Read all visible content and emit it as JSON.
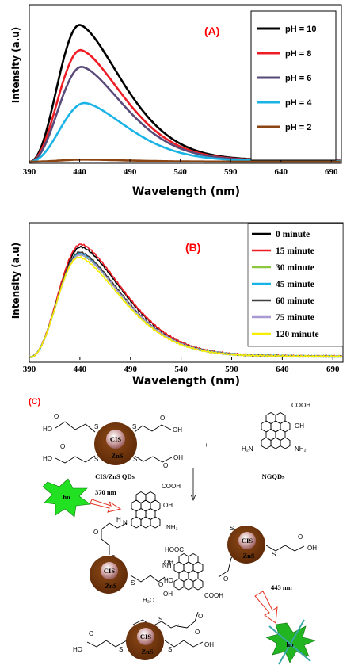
{
  "chart_data": [
    {
      "type": "line",
      "panel_label": "(A)",
      "xlabel": "Wavelength (nm)",
      "ylabel": "Intensity (a.u)",
      "xlim": [
        390,
        700
      ],
      "ylim": [
        0,
        1.0
      ],
      "x_ticks": [
        390,
        440,
        490,
        540,
        590,
        640,
        690
      ],
      "grid": false,
      "legend_position": "top-right",
      "series": [
        {
          "name": "pH = 10",
          "color": "#000000",
          "peak_x": 440,
          "peak_y": 0.98
        },
        {
          "name": "pH = 8",
          "color": "#ee1c24",
          "peak_x": 441,
          "peak_y": 0.8
        },
        {
          "name": "pH = 6",
          "color": "#5a4a7a",
          "peak_x": 442,
          "peak_y": 0.68
        },
        {
          "name": "pH = 4",
          "color": "#1ab3e6",
          "peak_x": 445,
          "peak_y": 0.42
        },
        {
          "name": "pH = 2",
          "color": "#8b4513",
          "peak_x": 445,
          "peak_y": 0.015
        }
      ]
    },
    {
      "type": "line",
      "panel_label": "(B)",
      "xlabel": "Wavelength (nm)",
      "ylabel": "Intensity (a.u)",
      "xlim": [
        390,
        700
      ],
      "ylim": [
        0,
        1.0
      ],
      "x_ticks": [
        390,
        440,
        490,
        540,
        590,
        640,
        690
      ],
      "grid": false,
      "legend_position": "top-right",
      "series": [
        {
          "name": "0 minute",
          "color": "#000000",
          "peak_x": 441,
          "peak_y": 0.86
        },
        {
          "name": "15 minute",
          "color": "#ee1c24",
          "peak_x": 441,
          "peak_y": 0.88
        },
        {
          "name": "30 minute",
          "color": "#8dc63f",
          "peak_x": 440,
          "peak_y": 0.8
        },
        {
          "name": "45 minute",
          "color": "#1ab3e6",
          "peak_x": 440,
          "peak_y": 0.81
        },
        {
          "name": "60 minute",
          "color": "#404040",
          "peak_x": 440,
          "peak_y": 0.82
        },
        {
          "name": "75 minute",
          "color": "#a99bd1",
          "peak_x": 440,
          "peak_y": 0.8
        },
        {
          "name": "120 minute",
          "color": "#f5ee00",
          "peak_x": 439,
          "peak_y": 0.78
        }
      ]
    }
  ],
  "scheme": {
    "panel_label": "(C)",
    "qd_core": "CIS",
    "qd_shell": "ZnS",
    "qd_name": "CIS/ZnS QDs",
    "gqd_name": "NGQDs",
    "plus": "+",
    "excitation_symbol": "hυ",
    "excitation_nm": "370 nm",
    "emission_nm": "443 nm",
    "water": "H₂O",
    "cooh": "COOH",
    "hooc": "HOOC",
    "oh": "OH",
    "ho": "HO",
    "nh2": "NH₂",
    "h2n": "H₂N",
    "nh": "NH",
    "n": "N",
    "h": "H",
    "s": "S",
    "o": "O",
    "colors": {
      "shell": "#7a3d12",
      "core": "#c9a2a2",
      "burst": "#22e022",
      "arrow": "#e03020",
      "teal": "#3aa6a6"
    }
  }
}
